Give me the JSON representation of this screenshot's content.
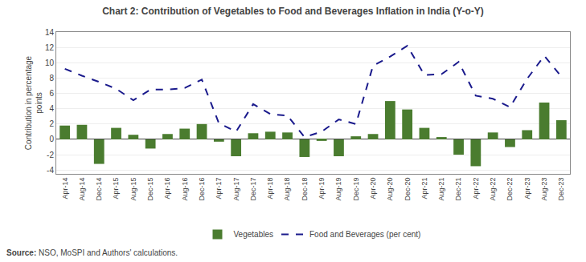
{
  "chart_data": {
    "type": "bar",
    "title": "Chart 2: Contribution of Vegetables to Food and Beverages Inflation in India (Y-o-Y)",
    "ylabel": "Contribution in percentage\npoints",
    "annotations": [
      "Source: NSO, MoSPI and Authors' calculations."
    ],
    "categories": [
      "Apr-14",
      "Aug-14",
      "Dec-14",
      "Apr-15",
      "Aug-15",
      "Dec-15",
      "Apr-16",
      "Aug-16",
      "Dec-16",
      "Apr-17",
      "Aug-17",
      "Dec-17",
      "Apr-18",
      "Aug-18",
      "Dec-18",
      "Apr-19",
      "Aug-19",
      "Dec-19",
      "Apr-20",
      "Aug-20",
      "Dec-20",
      "Apr-21",
      "Aug-21",
      "Dec-21",
      "Apr-22",
      "Aug-22",
      "Dec-22",
      "Apr-23",
      "Aug-23",
      "Dec-23"
    ],
    "series": [
      {
        "name": "Vegetables",
        "type": "bar",
        "color": "#4a7c2f",
        "values": [
          1.8,
          1.9,
          -3.2,
          1.5,
          0.6,
          -1.2,
          0.7,
          1.4,
          2.0,
          -0.3,
          -2.2,
          0.8,
          1.0,
          0.9,
          -2.3,
          -0.2,
          -2.2,
          0.4,
          0.7,
          5.0,
          3.9,
          1.5,
          0.3,
          -2.0,
          -3.5,
          0.9,
          -1.0,
          1.2,
          4.8,
          2.5
        ]
      },
      {
        "name": "Food and Beverages (per cent)",
        "type": "line",
        "color": "#1a1a8c",
        "line_style": "dashed",
        "values": [
          9.2,
          8.3,
          7.5,
          6.6,
          5.1,
          6.5,
          6.5,
          6.7,
          7.8,
          2.1,
          1.0,
          4.6,
          3.3,
          3.1,
          0.3,
          1.0,
          2.6,
          2.0,
          9.6,
          10.8,
          12.2,
          8.4,
          8.5,
          10.1,
          5.7,
          5.3,
          4.2,
          7.9,
          10.9,
          8.2
        ]
      }
    ],
    "ylim": [
      -4.5,
      14
    ],
    "yticks": [
      -4,
      -2,
      0,
      2,
      4,
      6,
      8,
      10,
      12,
      14
    ],
    "grid": true,
    "legend": "bottom"
  }
}
